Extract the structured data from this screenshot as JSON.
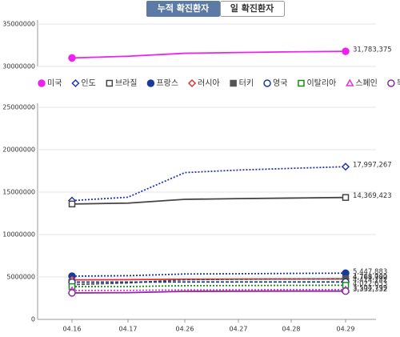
{
  "tabs": [
    "누적 확진환자",
    "일 확진환자"
  ],
  "chart_data": [
    {
      "type": "line",
      "ylim": [
        30000000,
        35000000
      ],
      "yticks": [
        30000000,
        35000000
      ],
      "grid": true,
      "series": [
        {
          "name": "미국",
          "color": "#ee22ee",
          "marker": "circle-filled",
          "dash": "none",
          "values": [
            31000000,
            31200000,
            31550000,
            31640000,
            31720000,
            31783375
          ],
          "value_label": "31,783,375"
        }
      ]
    },
    {
      "type": "line",
      "ylim": [
        0,
        25000000
      ],
      "yticks": [
        0,
        5000000,
        10000000,
        15000000,
        20000000,
        25000000
      ],
      "grid": true,
      "categories": [
        "04.16",
        "04.17",
        "04.26",
        "04.27",
        "04.28",
        "04.29"
      ],
      "series": [
        {
          "name": "인도",
          "color": "#2233bb",
          "marker": "diamond",
          "dash": "2,2",
          "values": [
            14000000,
            14400000,
            17300000,
            17600000,
            17800000,
            17997267
          ],
          "value_label": "17,997,267"
        },
        {
          "name": "브라질",
          "color": "#444444",
          "marker": "square",
          "dash": "none",
          "values": [
            13600000,
            13700000,
            14150000,
            14230000,
            14300000,
            14369423
          ],
          "value_label": "14,369,423"
        },
        {
          "name": "프랑스",
          "color": "#1a3a9a",
          "marker": "circle-filled",
          "dash": "2,2",
          "values": [
            5100000,
            5150000,
            5350000,
            5380000,
            5420000,
            5447883
          ],
          "value_label": "5,447,883"
        },
        {
          "name": "러시아",
          "color": "#dd3333",
          "marker": "diamond",
          "dash": "none",
          "values": [
            4660000,
            4680000,
            4740000,
            4750000,
            4760000,
            4768982
          ],
          "value_label": "4,768,982"
        },
        {
          "name": "터키",
          "color": "#555555",
          "marker": "square-filled",
          "dash": "4,2",
          "values": [
            4100000,
            4300000,
            4680000,
            4730000,
            4760000,
            4788700
          ],
          "value_label": "4,788,700"
        },
        {
          "name": "영국",
          "color": "#1a3a9a",
          "marker": "circle",
          "dash": "4,2",
          "values": [
            4390000,
            4400000,
            4410000,
            4410000,
            4410000,
            4414242
          ],
          "value_label": "4,414,242"
        },
        {
          "name": "이탈리아",
          "color": "#1a8a1a",
          "marker": "square",
          "dash": "2,2",
          "values": [
            3860000,
            3870000,
            3970000,
            3990000,
            4010000,
            4022653
          ],
          "value_label": "4,022,653"
        },
        {
          "name": "스페인",
          "color": "#dd33dd",
          "marker": "triangle",
          "dash": "2,2",
          "values": [
            3410000,
            3420000,
            3470000,
            3490000,
            3500000,
            3504799
          ],
          "value_label": "3,504,799"
        },
        {
          "name": "독일",
          "color": "#8a2aa0",
          "marker": "circle",
          "dash": "none",
          "values": [
            3120000,
            3150000,
            3300000,
            3320000,
            3330000,
            3332332
          ],
          "value_label": "3,332,332"
        }
      ]
    }
  ]
}
